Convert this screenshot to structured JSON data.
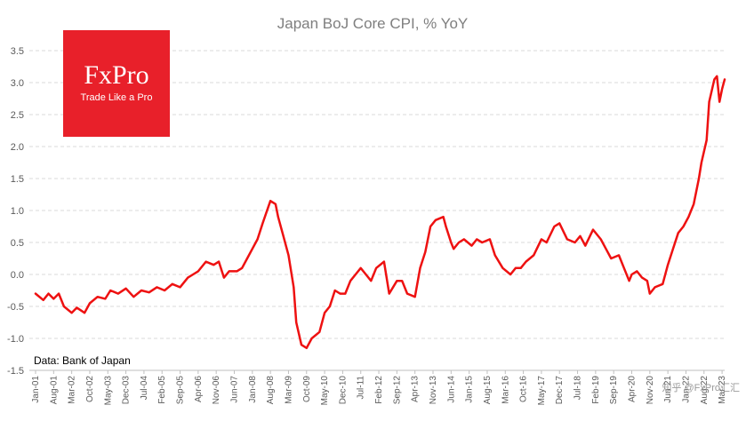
{
  "chart_data": {
    "type": "line",
    "title": "Japan BoJ Core CPI, % YoY",
    "xlabel": "",
    "ylabel": "",
    "ylim": [
      -1.5,
      3.5
    ],
    "yticks": [
      "-1.5",
      "-1.0",
      "-0.5",
      "0.0",
      "0.5",
      "1.0",
      "1.5",
      "2.0",
      "2.5",
      "3.0",
      "3.5"
    ],
    "grid": "horizontal dashed",
    "legend": "none",
    "line_color": "#ee1111",
    "x_tick_labels": [
      "Jan-01",
      "Aug-01",
      "Mar-02",
      "Oct-02",
      "May-03",
      "Dec-03",
      "Jul-04",
      "Feb-05",
      "Sep-05",
      "Apr-06",
      "Nov-06",
      "Jun-07",
      "Jan-08",
      "Aug-08",
      "Mar-09",
      "Oct-09",
      "May-10",
      "Dec-10",
      "Jul-11",
      "Feb-12",
      "Sep-12",
      "Apr-13",
      "Nov-13",
      "Jun-14",
      "Jan-15",
      "Aug-15",
      "Mar-16",
      "Oct-16",
      "May-17",
      "Dec-17",
      "Jul-18",
      "Feb-19",
      "Sep-19",
      "Apr-20",
      "Nov-20",
      "Jun-21",
      "Jan-22",
      "Aug-22",
      "Mar-23"
    ],
    "series": [
      {
        "name": "",
        "points": [
          [
            "Jan-01",
            -0.3
          ],
          [
            "Apr-01",
            -0.4
          ],
          [
            "Jun-01",
            -0.3
          ],
          [
            "Aug-01",
            -0.38
          ],
          [
            "Oct-01",
            -0.3
          ],
          [
            "Dec-01",
            -0.5
          ],
          [
            "Mar-02",
            -0.6
          ],
          [
            "May-02",
            -0.52
          ],
          [
            "Aug-02",
            -0.6
          ],
          [
            "Oct-02",
            -0.45
          ],
          [
            "Jan-03",
            -0.35
          ],
          [
            "Apr-03",
            -0.38
          ],
          [
            "Jun-03",
            -0.25
          ],
          [
            "Sep-03",
            -0.3
          ],
          [
            "Dec-03",
            -0.22
          ],
          [
            "Mar-04",
            -0.35
          ],
          [
            "Jun-04",
            -0.25
          ],
          [
            "Sep-04",
            -0.28
          ],
          [
            "Dec-04",
            -0.2
          ],
          [
            "Mar-05",
            -0.25
          ],
          [
            "Jun-05",
            -0.15
          ],
          [
            "Sep-05",
            -0.2
          ],
          [
            "Dec-05",
            -0.05
          ],
          [
            "Feb-06",
            0.0
          ],
          [
            "Apr-06",
            0.05
          ],
          [
            "Jul-06",
            0.2
          ],
          [
            "Oct-06",
            0.15
          ],
          [
            "Dec-06",
            0.2
          ],
          [
            "Feb-07",
            -0.05
          ],
          [
            "Apr-07",
            0.05
          ],
          [
            "Jul-07",
            0.05
          ],
          [
            "Sep-07",
            0.1
          ],
          [
            "Nov-07",
            0.25
          ],
          [
            "Jan-08",
            0.4
          ],
          [
            "Mar-08",
            0.55
          ],
          [
            "May-08",
            0.8
          ],
          [
            "Aug-08",
            1.15
          ],
          [
            "Oct-08",
            1.1
          ],
          [
            "Nov-08",
            0.9
          ],
          [
            "Jan-09",
            0.6
          ],
          [
            "Mar-09",
            0.3
          ],
          [
            "May-09",
            -0.2
          ],
          [
            "Jun-09",
            -0.75
          ],
          [
            "Aug-09",
            -1.1
          ],
          [
            "Oct-09",
            -1.15
          ],
          [
            "Dec-09",
            -1.0
          ],
          [
            "Mar-10",
            -0.9
          ],
          [
            "May-10",
            -0.6
          ],
          [
            "Jul-10",
            -0.5
          ],
          [
            "Sep-10",
            -0.25
          ],
          [
            "Nov-10",
            -0.3
          ],
          [
            "Jan-11",
            -0.3
          ],
          [
            "Mar-11",
            -0.1
          ],
          [
            "May-11",
            0.0
          ],
          [
            "Jul-11",
            0.1
          ],
          [
            "Sep-11",
            0.0
          ],
          [
            "Nov-11",
            -0.1
          ],
          [
            "Jan-12",
            0.1
          ],
          [
            "Apr-12",
            0.2
          ],
          [
            "Jun-12",
            -0.3
          ],
          [
            "Sep-12",
            -0.1
          ],
          [
            "Nov-12",
            -0.1
          ],
          [
            "Jan-13",
            -0.3
          ],
          [
            "Apr-13",
            -0.35
          ],
          [
            "Jun-13",
            0.1
          ],
          [
            "Aug-13",
            0.35
          ],
          [
            "Oct-13",
            0.75
          ],
          [
            "Dec-13",
            0.85
          ],
          [
            "Mar-14",
            0.9
          ],
          [
            "Apr-14",
            0.75
          ],
          [
            "Jun-14",
            0.5
          ],
          [
            "Jul-14",
            0.4
          ],
          [
            "Sep-14",
            0.5
          ],
          [
            "Nov-14",
            0.55
          ],
          [
            "Feb-15",
            0.45
          ],
          [
            "Apr-15",
            0.55
          ],
          [
            "Jun-15",
            0.5
          ],
          [
            "Sep-15",
            0.55
          ],
          [
            "Nov-15",
            0.3
          ],
          [
            "Feb-16",
            0.1
          ],
          [
            "May-16",
            0.0
          ],
          [
            "Jul-16",
            0.1
          ],
          [
            "Sep-16",
            0.1
          ],
          [
            "Nov-16",
            0.2
          ],
          [
            "Feb-17",
            0.3
          ],
          [
            "May-17",
            0.55
          ],
          [
            "Jul-17",
            0.5
          ],
          [
            "Oct-17",
            0.75
          ],
          [
            "Dec-17",
            0.8
          ],
          [
            "Mar-18",
            0.55
          ],
          [
            "Jun-18",
            0.5
          ],
          [
            "Aug-18",
            0.6
          ],
          [
            "Oct-18",
            0.45
          ],
          [
            "Jan-19",
            0.7
          ],
          [
            "Apr-19",
            0.55
          ],
          [
            "Jun-19",
            0.4
          ],
          [
            "Aug-19",
            0.25
          ],
          [
            "Nov-19",
            0.3
          ],
          [
            "Jan-20",
            0.1
          ],
          [
            "Mar-20",
            -0.1
          ],
          [
            "Apr-20",
            0.0
          ],
          [
            "Jun-20",
            0.05
          ],
          [
            "Aug-20",
            -0.05
          ],
          [
            "Oct-20",
            -0.1
          ],
          [
            "Nov-20",
            -0.3
          ],
          [
            "Jan-21",
            -0.2
          ],
          [
            "Apr-21",
            -0.15
          ],
          [
            "Jun-21",
            0.15
          ],
          [
            "Aug-21",
            0.4
          ],
          [
            "Oct-21",
            0.65
          ],
          [
            "Dec-21",
            0.75
          ],
          [
            "Feb-22",
            0.9
          ],
          [
            "Apr-22",
            1.1
          ],
          [
            "Jun-22",
            1.5
          ],
          [
            "Jul-22",
            1.75
          ],
          [
            "Sep-22",
            2.1
          ],
          [
            "Oct-22",
            2.7
          ],
          [
            "Dec-22",
            3.05
          ],
          [
            "Jan-23",
            3.1
          ],
          [
            "Feb-23",
            2.7
          ],
          [
            "Mar-23",
            2.9
          ],
          [
            "Apr-23",
            3.05
          ]
        ]
      }
    ],
    "source_note": "Data: Bank of Japan"
  },
  "logo": {
    "brand": "FxPro",
    "tagline": "Trade Like a Pro",
    "color": "#e8202a"
  },
  "watermark": "知乎 @FxPro汇汇"
}
